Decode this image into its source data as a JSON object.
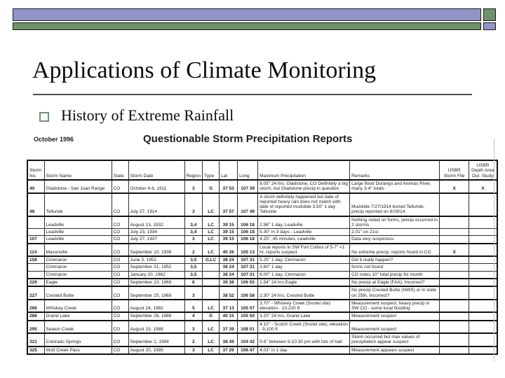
{
  "colors": {
    "bar_purple": "#9394c9",
    "bar_green": "#6d9468"
  },
  "slide": {
    "title": "Applications of Climate Monitoring",
    "bullet_label": "History of Extreme Rainfall"
  },
  "scan": {
    "date_label": "October 1996",
    "table_title": "Questionable Storm Precipitation Reports",
    "table": {
      "columns": [
        "Storm No.",
        "Storm Name",
        "State",
        "Storm Date",
        "Region",
        "Type",
        "Lat",
        "Long",
        "Maximum Precipitation",
        "Remarks",
        "USBR Storm File",
        "USBR Depth Area Dur. Study"
      ],
      "rows": [
        [
          "40",
          "Gladstone - San Juan Range",
          "CO",
          "October 4-6, 1911",
          "3",
          "G",
          "37 53",
          "107 39",
          "8.05\" 24 hrs. Gladstone, CO Definitely a big storm, but Gladstone precip in question",
          "Large flood Durango and Animas River, many 3-4\" totals",
          "X",
          "X"
        ],
        [
          "48",
          "Telluride",
          "CO",
          "July 27, 1914",
          "3",
          "LC",
          "37 57",
          "107 49",
          "A storm definitely happened but date of reported heavy rain does not match with date of reported mudslide 3.50\" 1 day Telluride",
          "Mudslide 7/27/1914 buried Telluride, precip reported on 8/29/14.",
          "",
          ""
        ],
        [
          "",
          "Leadville",
          "CO",
          "August 13, 1932",
          "3,4",
          "LC",
          "39 15",
          "106 18",
          "2.96\" 1 day, Leadville",
          "Nothing noted on forms, precip occurred in 2 storms",
          "",
          ""
        ],
        [
          "",
          "Leadville",
          "CO",
          "July 23, 1934",
          "3,4",
          "LC",
          "39 15",
          "106 18",
          "5.30\" in 3 days - Leadville",
          "2.01\" on 21st",
          "",
          ""
        ],
        [
          "107",
          "Leadville",
          "CO",
          "July 27, 1937",
          "3",
          "LC",
          "39 15",
          "106 18",
          "4.25\", 45 minutes, Leadville",
          "Data very suspicious",
          "",
          ""
        ],
        [
          "114",
          "Masonville",
          "CO",
          "September 10, 1938",
          "2",
          "LC",
          "40 26",
          "105 13",
          "Local reports in SW Fort Collins of 5-7\" <1 hr, reports suspect",
          "No extreme precip. reports found in CO",
          "X",
          ""
        ],
        [
          "158",
          "Cimmaron",
          "CO",
          "June 3, 1952",
          "3,5",
          "G,LC",
          "38 24",
          "107 31",
          "5.25\" 1 day, Cimmaron",
          "Did it really happen?",
          "",
          ""
        ],
        [
          "",
          "Cimmaron",
          "CO",
          "September 21, 1952",
          "3,5",
          "",
          "38 24",
          "107 31",
          "3.60\" 1 day",
          "forms not found",
          "",
          ""
        ],
        [
          "",
          "Cimmaron",
          "CO",
          "January 20, 1962",
          "3,5",
          "",
          "38 24",
          "107 31",
          "6.00\" 1 day, Cimmaron",
          "CO notes 10\" total precip for month",
          "",
          ""
        ],
        [
          "226",
          "Eagle",
          "CO",
          "September 23, 1969",
          "6",
          "",
          "39 38",
          "106 55",
          "1.54\" 24 hrs Eagle",
          "No precip at Eagle (FAA), Incorrect?",
          "",
          ""
        ],
        [
          "227",
          "Crested Butte",
          "CO",
          "September 25, 1969",
          "3",
          "",
          "38 52",
          "106 58",
          "2.30\" 24 hrs, Crested Butte",
          "No precip Crested Butte (NWS) or in state on 25th, Incorrect?",
          "",
          ""
        ],
        [
          "266",
          "Whiskey Creek",
          "CO",
          "August 24, 1982",
          "5",
          "LC",
          "37 13",
          "105 07",
          "3.70\" - Whiskey Creek (Snotel site) elevation - 10,220 ft",
          "Measurement suspect, heavy precip in SW CO - some local flooding",
          "",
          ""
        ],
        [
          "286",
          "Grand Lake",
          "CO",
          "September 28, 1988",
          "4",
          "G",
          "40 15",
          "105 50",
          "3.20\" 24 hrs, Grand Lake",
          "Measurement suspect",
          "",
          ""
        ],
        [
          "295",
          "Seaton Creek",
          "CO",
          "August 19, 1988",
          "3",
          "LC",
          "37 39",
          "108 01",
          "4.10\" - Scotch Creek (Snotel site), elevation - 9,100 ft",
          "Measurement suspect",
          "",
          ""
        ],
        [
          "321",
          "Colorado Springs",
          "CO",
          "September 2, 1994",
          "2",
          "LC",
          "38 49",
          "104 42",
          "5-6\" between 9-10:30 pm with lots of hail",
          "Storm occurred but max values of precipitation appear suspect",
          "",
          ""
        ],
        [
          "325",
          "Wolf Creek Pass",
          "CO",
          "August 20, 1995",
          "3",
          "LC",
          "37 29",
          "106 47",
          "4.03\" in 1 day",
          "Measurement appears suspect",
          "",
          ""
        ]
      ]
    }
  }
}
